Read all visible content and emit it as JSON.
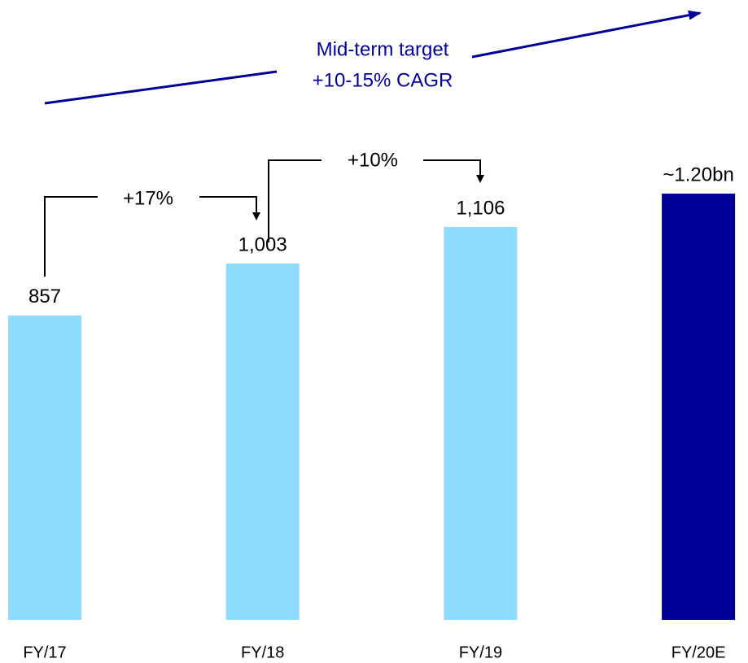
{
  "chart_data": {
    "type": "bar",
    "categories": [
      "FY/17",
      "FY/18",
      "FY/19",
      "FY/20E"
    ],
    "values": [
      857,
      1003,
      1106,
      1200
    ],
    "value_labels": [
      "857",
      "1,003",
      "1,106",
      "~1.20bn"
    ],
    "colors": [
      "#8ddcfd",
      "#8ddcfd",
      "#8ddcfd",
      "#000099"
    ],
    "ylim": [
      0,
      1200
    ],
    "annotations": [
      "+17%",
      "+10%",
      "Mid-term target",
      "+10-15% CAGR"
    ]
  }
}
